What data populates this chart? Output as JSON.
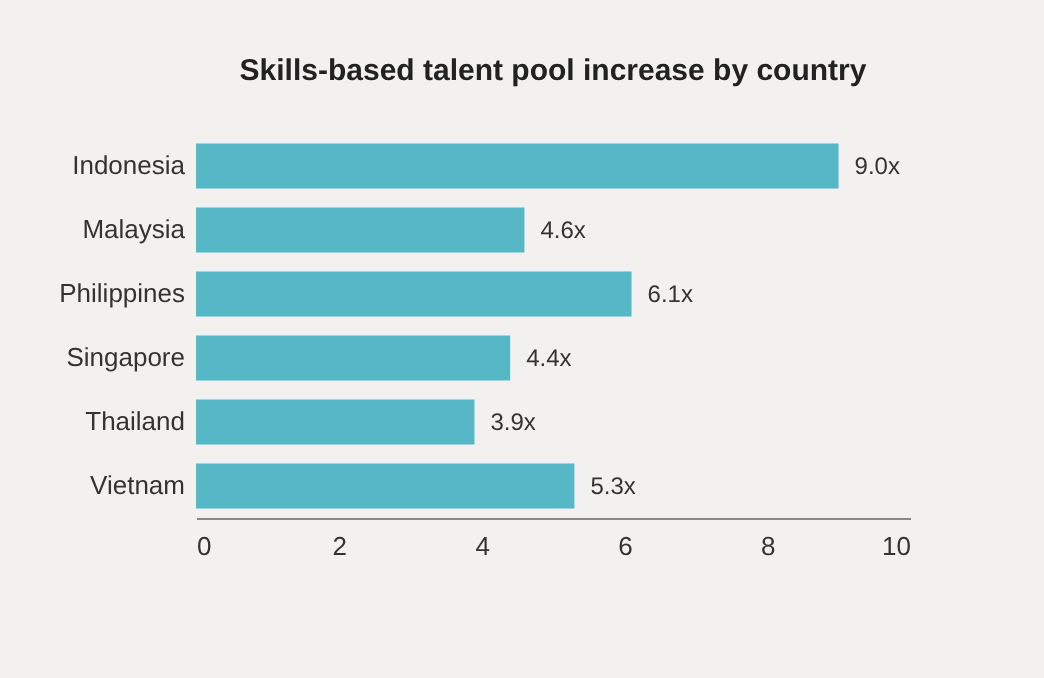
{
  "chart_data": {
    "type": "bar",
    "orientation": "horizontal",
    "title": "Skills-based talent pool increase by country",
    "categories": [
      "Indonesia",
      "Malaysia",
      "Philippines",
      "Singapore",
      "Thailand",
      "Vietnam"
    ],
    "values": [
      9.0,
      4.6,
      6.1,
      4.4,
      3.9,
      5.3
    ],
    "value_labels": [
      "9.0x",
      "4.6x",
      "6.1x",
      "4.4x",
      "3.9x",
      "5.3x"
    ],
    "color": "#56b8c7",
    "xlim": [
      0,
      10
    ],
    "xticks": [
      0,
      2,
      4,
      6,
      8,
      10
    ]
  }
}
